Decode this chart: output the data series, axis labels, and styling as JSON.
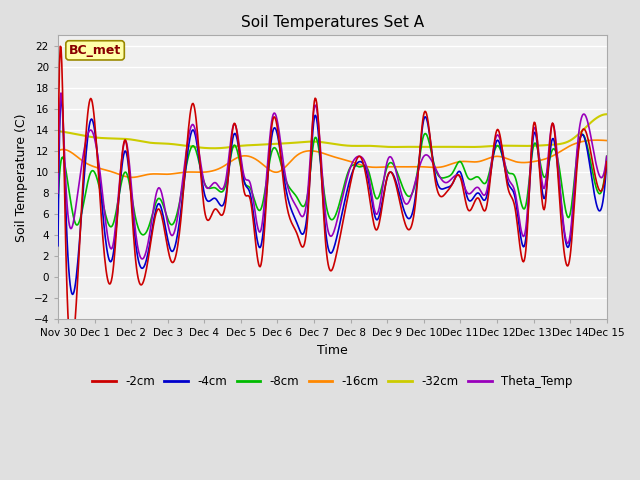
{
  "title": "Soil Temperatures Set A",
  "xlabel": "Time",
  "ylabel": "Soil Temperature (C)",
  "ylim": [
    -4,
    23
  ],
  "yticks": [
    -4,
    -2,
    0,
    2,
    4,
    6,
    8,
    10,
    12,
    14,
    16,
    18,
    20,
    22
  ],
  "xtick_labels": [
    "Nov 30",
    "Dec 1",
    "Dec 2",
    "Dec 3",
    "Dec 4",
    "Dec 5",
    "Dec 6",
    "Dec 7",
    "Dec 8",
    "Dec 9",
    "Dec 10",
    "Dec 11",
    "Dec 12",
    "Dec 13",
    "Dec 14",
    "Dec 15"
  ],
  "annotation_text": "BC_met",
  "series_colors": {
    "-2cm": "#cc0000",
    "-4cm": "#0000cc",
    "-8cm": "#00bb00",
    "-16cm": "#ff8800",
    "-32cm": "#cccc00",
    "Theta_Temp": "#9900bb"
  },
  "line_widths": {
    "-2cm": 1.2,
    "-4cm": 1.2,
    "-8cm": 1.2,
    "-16cm": 1.2,
    "-32cm": 1.5,
    "Theta_Temp": 1.2
  },
  "bg_color": "#e0e0e0",
  "plot_bg_color": "#f0f0f0",
  "grid_color": "#ffffff",
  "n_points": 720
}
